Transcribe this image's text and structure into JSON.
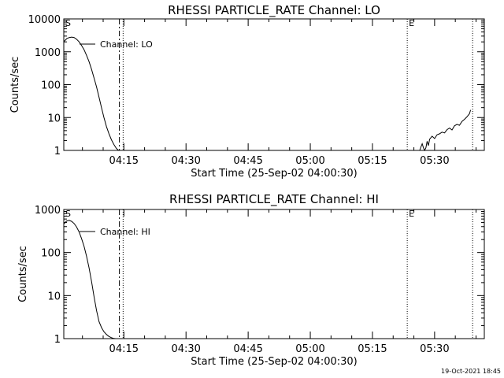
{
  "timestamp": "19-Oct-2021 18:45",
  "chart_data": [
    {
      "type": "line",
      "title": "RHESSI PARTICLE_RATE Channel: LO",
      "xlabel": "Start Time (25-Sep-02 04:00:30)",
      "ylabel": "Counts/sec",
      "yscale": "log",
      "xlim": [
        4.0083,
        5.7
      ],
      "ylim": [
        1,
        10000
      ],
      "x_ticks": [
        "04:15",
        "04:30",
        "04:45",
        "05:00",
        "05:15",
        "05:30"
      ],
      "x_tick_values": [
        4.25,
        4.5,
        4.75,
        5.0,
        5.25,
        5.5
      ],
      "y_ticks": [
        "1",
        "10",
        "100",
        "1000",
        "10000"
      ],
      "y_tick_values": [
        1,
        10,
        100,
        1000,
        10000
      ],
      "legend": [
        "Channel: LO"
      ],
      "markers": [
        {
          "label": "S",
          "x": 4.0083,
          "style": "none"
        },
        {
          "label": "",
          "x": 4.232,
          "style": "dashdot"
        },
        {
          "label": "",
          "x": 4.247,
          "style": "dotted"
        },
        {
          "label": "E",
          "x": 5.39,
          "style": "dotted"
        },
        {
          "label": "",
          "x": 5.653,
          "style": "dotted"
        }
      ],
      "series": [
        {
          "name": "Channel: LO",
          "segments": [
            {
              "x": [
                4.008,
                4.02,
                4.03,
                4.04,
                4.05,
                4.06,
                4.07,
                4.08,
                4.09,
                4.1,
                4.11,
                4.12,
                4.13,
                4.14,
                4.15,
                4.16,
                4.17,
                4.18,
                4.19,
                4.2,
                4.21,
                4.22,
                4.229
              ],
              "y": [
                2000,
                2500,
                2700,
                2800,
                2700,
                2400,
                2000,
                1550,
                1150,
                780,
                500,
                290,
                160,
                85,
                42,
                20,
                10,
                5.3,
                3.2,
                2.1,
                1.5,
                1.15,
                1
              ]
            },
            {
              "x": [
                5.44,
                5.45,
                5.455,
                5.46,
                5.465,
                5.47,
                5.475,
                5.48,
                5.49,
                5.5,
                5.51,
                5.52,
                5.53,
                5.54,
                5.55,
                5.56,
                5.57,
                5.58,
                5.59,
                5.6,
                5.61,
                5.62,
                5.63,
                5.64,
                5.645
              ],
              "y": [
                1,
                1.6,
                1.2,
                1,
                1.2,
                1.9,
                1.4,
                2.2,
                2.7,
                2.3,
                3.0,
                3.2,
                3.6,
                3.4,
                4.3,
                4.8,
                4.2,
                5.6,
                6.2,
                5.8,
                7.6,
                8.8,
                10.5,
                13,
                17
              ]
            }
          ]
        }
      ]
    },
    {
      "type": "line",
      "title": "RHESSI PARTICLE_RATE Channel: HI",
      "xlabel": "Start Time (25-Sep-02 04:00:30)",
      "ylabel": "Counts/sec",
      "yscale": "log",
      "xlim": [
        4.0083,
        5.7
      ],
      "ylim": [
        1,
        1000
      ],
      "x_ticks": [
        "04:15",
        "04:30",
        "04:45",
        "05:00",
        "05:15",
        "05:30"
      ],
      "x_tick_values": [
        4.25,
        4.5,
        4.75,
        5.0,
        5.25,
        5.5
      ],
      "y_ticks": [
        "1",
        "10",
        "100",
        "1000"
      ],
      "y_tick_values": [
        1,
        10,
        100,
        1000
      ],
      "legend": [
        "Channel: HI"
      ],
      "markers": [
        {
          "label": "S",
          "x": 4.0083,
          "style": "none"
        },
        {
          "label": "",
          "x": 4.232,
          "style": "dashdot"
        },
        {
          "label": "",
          "x": 4.247,
          "style": "dotted"
        },
        {
          "label": "E",
          "x": 5.39,
          "style": "dotted"
        },
        {
          "label": "",
          "x": 5.653,
          "style": "dotted"
        }
      ],
      "series": [
        {
          "name": "Channel: HI",
          "segments": [
            {
              "x": [
                4.008,
                4.02,
                4.03,
                4.04,
                4.05,
                4.06,
                4.07,
                4.08,
                4.09,
                4.1,
                4.11,
                4.12,
                4.13,
                4.14,
                4.15,
                4.16,
                4.17,
                4.18,
                4.19,
                4.2,
                4.21,
                4.217
              ],
              "y": [
                460,
                540,
                560,
                530,
                470,
                390,
                300,
                210,
                138,
                82,
                44,
                21,
                9.5,
                4.5,
                2.5,
                1.8,
                1.45,
                1.25,
                1.12,
                1.05,
                1.01,
                1
              ]
            }
          ]
        }
      ]
    }
  ]
}
